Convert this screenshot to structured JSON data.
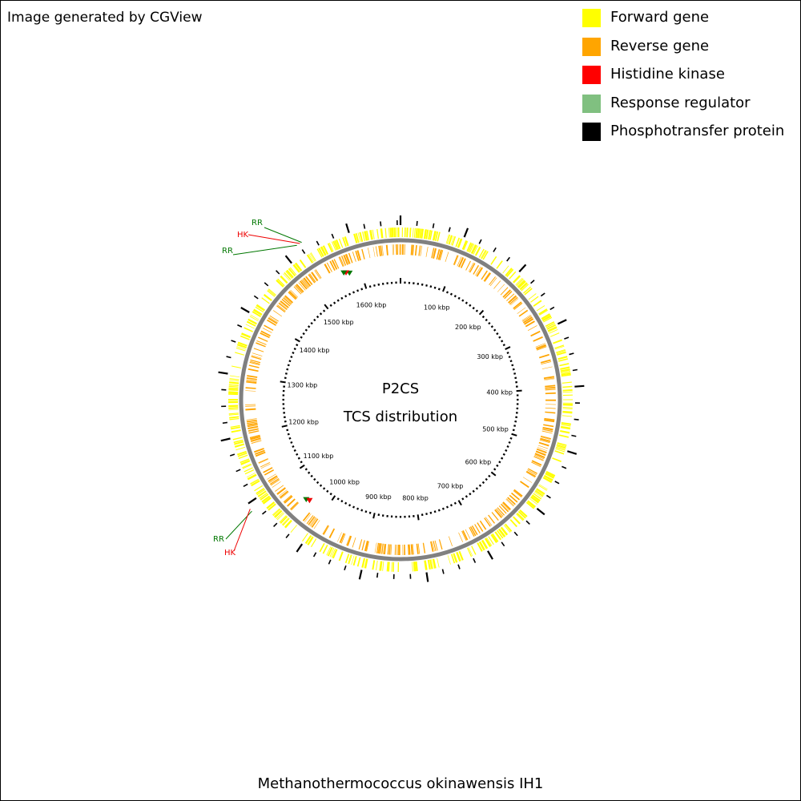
{
  "credit": "Image generated by CGView",
  "legend": [
    {
      "label": "Forward gene",
      "color": "#ffff00"
    },
    {
      "label": "Reverse gene",
      "color": "#ffa500"
    },
    {
      "label": "Histidine kinase",
      "color": "#ff0000"
    },
    {
      "label": "Response regulator",
      "color": "#80c080"
    },
    {
      "label": "Phosphotransfer protein",
      "color": "#000000"
    }
  ],
  "center_title": "P2CS",
  "center_subtitle": "TCS distribution",
  "organism": "Methanothermococcus okinawensis IH1",
  "genome_length_kbp": 1680,
  "kbp_ticks": [
    {
      "value": 100,
      "label": "100 kbp"
    },
    {
      "value": 200,
      "label": "200 kbp"
    },
    {
      "value": 300,
      "label": "300 kbp"
    },
    {
      "value": 400,
      "label": "400 kbp"
    },
    {
      "value": 500,
      "label": "500 kbp"
    },
    {
      "value": 600,
      "label": "600 kbp"
    },
    {
      "value": 700,
      "label": "700 kbp"
    },
    {
      "value": 800,
      "label": "800 kbp"
    },
    {
      "value": 900,
      "label": "900 kbp"
    },
    {
      "value": 1000,
      "label": "1000 kbp"
    },
    {
      "value": 1100,
      "label": "1100 kbp"
    },
    {
      "value": 1200,
      "label": "1200 kbp"
    },
    {
      "value": 1300,
      "label": "1300 kbp"
    },
    {
      "value": 1400,
      "label": "1400 kbp"
    },
    {
      "value": 1500,
      "label": "1500 kbp"
    },
    {
      "value": 1600,
      "label": "1600 kbp"
    }
  ],
  "tcs_features": [
    {
      "label": "RR",
      "type": "Response regulator",
      "color": "#007700"
    },
    {
      "label": "HK",
      "type": "Histidine kinase",
      "color": "#ee0000"
    },
    {
      "label": "RR",
      "type": "Response regulator",
      "color": "#007700"
    },
    {
      "label": "RR",
      "type": "Response regulator",
      "color": "#007700"
    },
    {
      "label": "HK",
      "type": "Histidine kinase",
      "color": "#ee0000"
    }
  ]
}
